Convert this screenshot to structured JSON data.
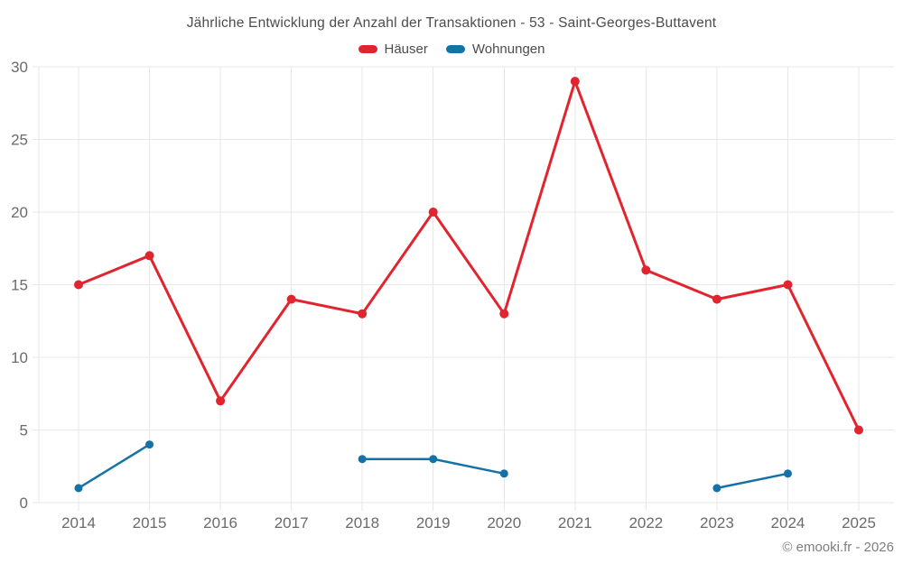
{
  "header": {
    "title": "Jährliche Entwicklung der Anzahl der Transaktionen - 53 - Saint-Georges-Buttavent"
  },
  "legend": {
    "items": [
      {
        "label": "Häuser",
        "color": "#e1242e"
      },
      {
        "label": "Wohnungen",
        "color": "#1572a8"
      }
    ]
  },
  "footer": {
    "credit": "© emooki.fr - 2026"
  },
  "colors": {
    "haeuser": "#e1242e",
    "wohnungen": "#1572a8",
    "grid": "#e7e7e7",
    "tick_text": "#6b6b6b",
    "title_text": "#4c4c4c"
  },
  "chart_data": {
    "type": "line",
    "title": "Jährliche Entwicklung der Anzahl der Transaktionen - 53 - Saint-Georges-Buttavent",
    "xlabel": "",
    "ylabel": "",
    "categories": [
      "2014",
      "2015",
      "2016",
      "2017",
      "2018",
      "2019",
      "2020",
      "2021",
      "2022",
      "2023",
      "2024",
      "2025"
    ],
    "series": [
      {
        "name": "Häuser",
        "color": "#e1242e",
        "values": [
          15,
          17,
          7,
          14,
          13,
          20,
          13,
          29,
          16,
          14,
          15,
          5
        ]
      },
      {
        "name": "Wohnungen",
        "color": "#1572a8",
        "values": [
          1,
          4,
          null,
          null,
          3,
          3,
          2,
          null,
          null,
          1,
          2,
          null
        ]
      }
    ],
    "ylim": [
      0,
      30
    ],
    "yticks": [
      0,
      5,
      10,
      15,
      20,
      25,
      30
    ],
    "grid": true,
    "legend_position": "top",
    "markers": true
  }
}
